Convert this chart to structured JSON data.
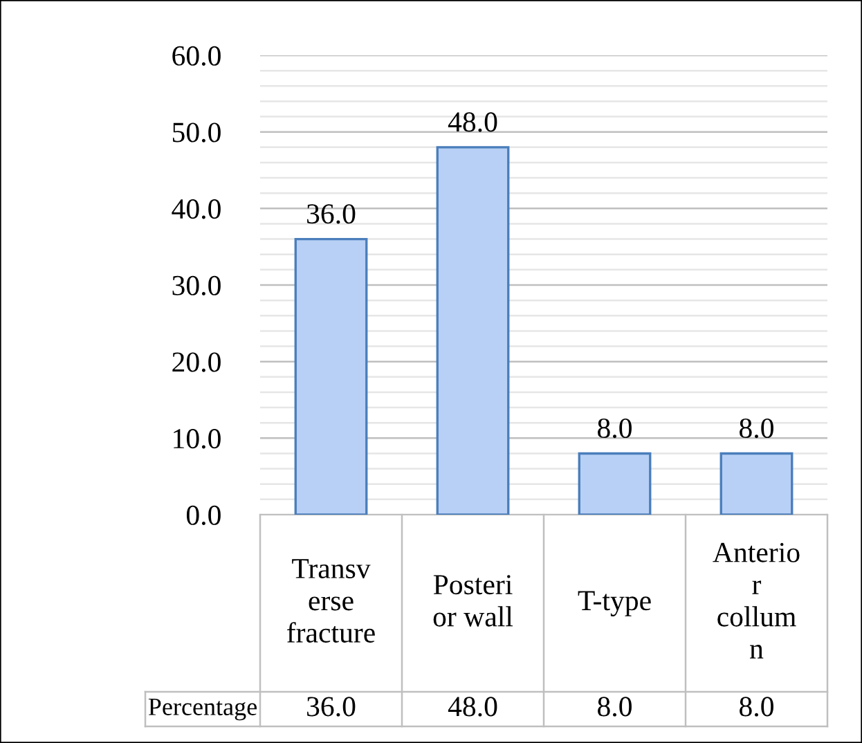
{
  "chart_data": {
    "type": "bar",
    "categories": [
      "Transv\nerse\nfracture",
      "Posteri\nor wall",
      "T-type",
      "Anterio\nr\ncollum\nn"
    ],
    "series": [
      {
        "name": "Percentage",
        "color": "#b8d0f5",
        "values": [
          36,
          48,
          8,
          8
        ],
        "value_labels": [
          "36.0",
          "48.0",
          "8.0",
          "8.0"
        ]
      }
    ],
    "ylim": [
      0,
      60
    ],
    "yticks": [
      {
        "value": 0,
        "label": "0.0"
      },
      {
        "value": 2,
        "label": null
      },
      {
        "value": 4,
        "label": null
      },
      {
        "value": 6,
        "label": null
      },
      {
        "value": 8,
        "label": null
      },
      {
        "value": 10,
        "label": "10.0"
      },
      {
        "value": 12,
        "label": null
      },
      {
        "value": 14,
        "label": null
      },
      {
        "value": 16,
        "label": null
      },
      {
        "value": 18,
        "label": null
      },
      {
        "value": 20,
        "label": "20.0"
      },
      {
        "value": 22,
        "label": null
      },
      {
        "value": 24,
        "label": null
      },
      {
        "value": 26,
        "label": null
      },
      {
        "value": 28,
        "label": null
      },
      {
        "value": 30,
        "label": "30.0"
      },
      {
        "value": 32,
        "label": null
      },
      {
        "value": 34,
        "label": null
      },
      {
        "value": 36,
        "label": null
      },
      {
        "value": 38,
        "label": null
      },
      {
        "value": 40,
        "label": "40.0"
      },
      {
        "value": 42,
        "label": null
      },
      {
        "value": 44,
        "label": null
      },
      {
        "value": 46,
        "label": null
      },
      {
        "value": 48,
        "label": null
      },
      {
        "value": 50,
        "label": "50.0"
      },
      {
        "value": 52,
        "label": null
      },
      {
        "value": 54,
        "label": null
      },
      {
        "value": 56,
        "label": null
      },
      {
        "value": 58,
        "label": null
      },
      {
        "value": 60,
        "label": "60.0"
      }
    ],
    "grid": "y",
    "legend": false
  }
}
